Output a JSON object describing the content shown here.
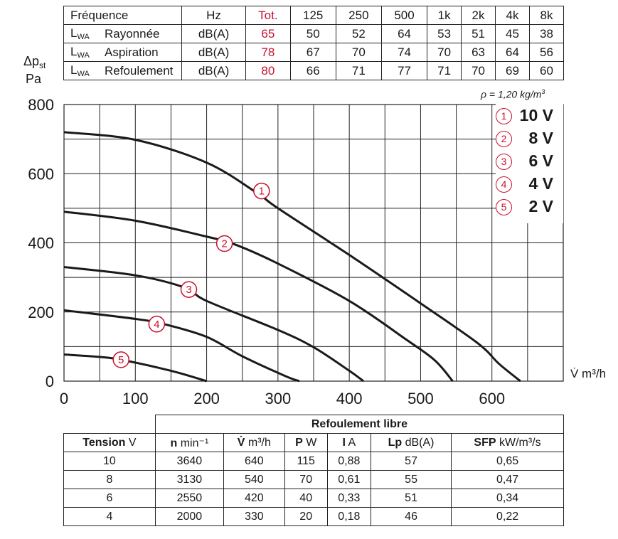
{
  "sound_table": {
    "header": [
      "Fréquence",
      "Hz",
      "Tot.",
      "125",
      "250",
      "500",
      "1k",
      "2k",
      "4k",
      "8k"
    ],
    "lwa": "L",
    "lwa_sub": "WA",
    "rows": [
      {
        "label": "Rayonnée",
        "unit": "dB(A)",
        "tot": "65",
        "values": [
          "50",
          "52",
          "64",
          "53",
          "51",
          "45",
          "38"
        ]
      },
      {
        "label": "Aspiration",
        "unit": "dB(A)",
        "tot": "78",
        "values": [
          "67",
          "70",
          "74",
          "70",
          "63",
          "64",
          "56"
        ]
      },
      {
        "label": "Refoulement",
        "unit": "dB(A)",
        "tot": "80",
        "values": [
          "66",
          "71",
          "77",
          "71",
          "70",
          "69",
          "60"
        ]
      }
    ]
  },
  "y_label": {
    "line1_main": "Δp",
    "line1_sub": "st",
    "line2": "Pa"
  },
  "rho_label": "ρ = 1,20 kg/m",
  "rho_sup": "3",
  "x_unit_label": "V̇ m³/h",
  "chart_data": {
    "type": "line",
    "xlim": [
      0,
      700
    ],
    "ylim": [
      0,
      800
    ],
    "x_ticks": [
      "0",
      "100",
      "200",
      "300",
      "400",
      "500",
      "600"
    ],
    "y_ticks": [
      "0",
      "200",
      "400",
      "600",
      "800"
    ],
    "grid": true,
    "legend_position": "top-right",
    "series": [
      {
        "marker": "1",
        "name": "10 V",
        "x": [
          0,
          100,
          200,
          270,
          300,
          400,
          500,
          580,
          610,
          640
        ],
        "y": [
          720,
          698,
          632,
          545,
          500,
          365,
          225,
          110,
          50,
          0
        ]
      },
      {
        "marker": "2",
        "name": "8 V",
        "x": [
          0,
          100,
          200,
          240,
          300,
          400,
          480,
          520,
          545
        ],
        "y": [
          490,
          464,
          418,
          395,
          340,
          232,
          120,
          60,
          0
        ]
      },
      {
        "marker": "3",
        "name": "6 V",
        "x": [
          0,
          100,
          170,
          200,
          300,
          350,
          400,
          420
        ],
        "y": [
          330,
          306,
          270,
          232,
          148,
          98,
          30,
          0
        ]
      },
      {
        "marker": "4",
        "name": "4 V",
        "x": [
          0,
          100,
          140,
          200,
          250,
          310,
          330
        ],
        "y": [
          205,
          180,
          165,
          128,
          72,
          15,
          0
        ]
      },
      {
        "marker": "5",
        "name": "2 V",
        "x": [
          0,
          50,
          80,
          150,
          200
        ],
        "y": [
          77,
          70,
          62,
          30,
          0
        ]
      }
    ],
    "marker_positions": [
      {
        "marker": "1",
        "x": 277,
        "y": 550
      },
      {
        "marker": "2",
        "x": 225,
        "y": 398
      },
      {
        "marker": "3",
        "x": 175,
        "y": 265
      },
      {
        "marker": "4",
        "x": 130,
        "y": 165
      },
      {
        "marker": "5",
        "x": 80,
        "y": 62
      }
    ]
  },
  "perf_table": {
    "title": "Refoulement libre",
    "columns": [
      {
        "bold": "Tension",
        "unit": "V"
      },
      {
        "bold": "n",
        "unit": "min⁻¹"
      },
      {
        "bold": "V̇",
        "unit": "m³/h"
      },
      {
        "bold": "P",
        "unit": "W"
      },
      {
        "bold": "I",
        "unit": "A"
      },
      {
        "bold": "Lp",
        "unit": "dB(A)"
      },
      {
        "bold": "SFP",
        "unit": "kW/m³/s"
      }
    ],
    "rows": [
      [
        "10",
        "3640",
        "640",
        "115",
        "0,88",
        "57",
        "0,65"
      ],
      [
        "8",
        "3130",
        "540",
        "70",
        "0,61",
        "55",
        "0,47"
      ],
      [
        "6",
        "2550",
        "420",
        "40",
        "0,33",
        "51",
        "0,34"
      ],
      [
        "4",
        "2000",
        "330",
        "20",
        "0,18",
        "46",
        "0,22"
      ]
    ]
  },
  "colors": {
    "accent_red": "#c8102e",
    "line": "#1a1a1a",
    "grid": "#222222"
  }
}
